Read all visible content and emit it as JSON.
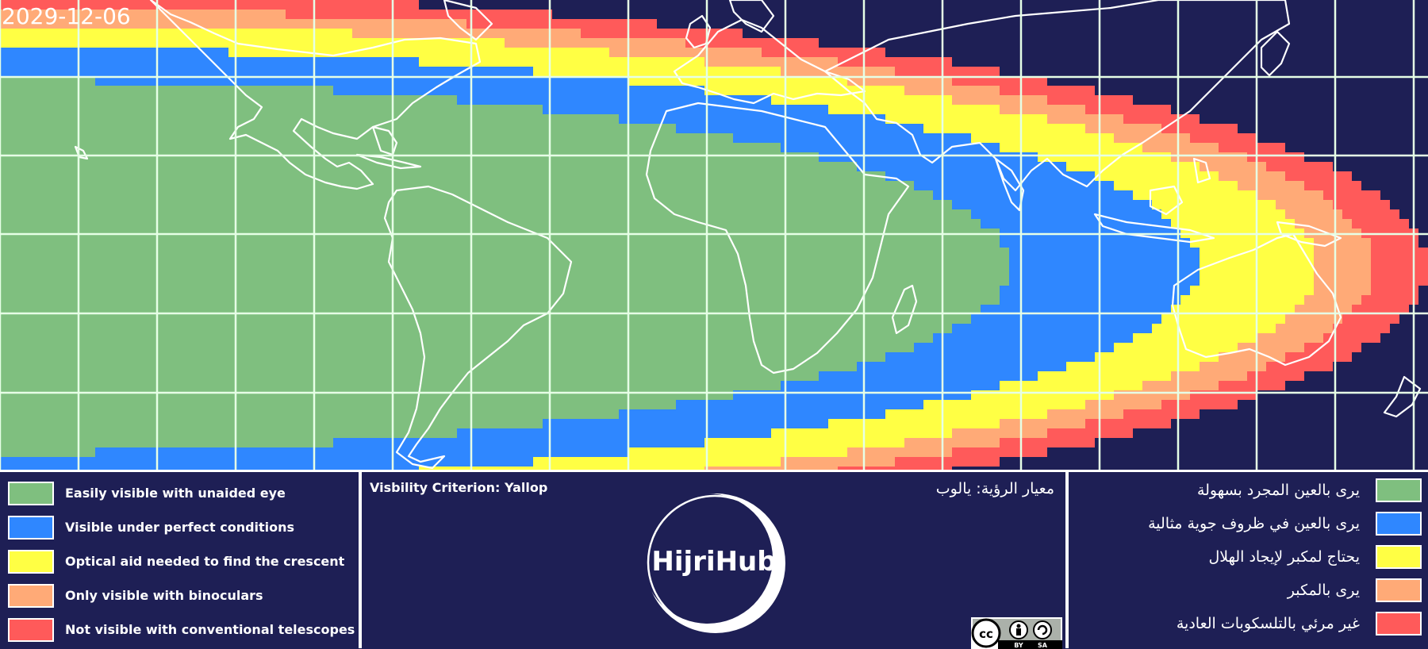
{
  "date": "2029-12-06",
  "map": {
    "zones": [
      {
        "label": "Easily visible with unaided eye",
        "color": "#7fbf7f"
      },
      {
        "label": "Visible under perfect conditions",
        "color": "#2f87ff"
      },
      {
        "label": "Optical aid needed to find the crescent",
        "color": "#ffff44"
      },
      {
        "label": "Only visible with binoculars",
        "color": "#ffaa77"
      },
      {
        "label": "Not visible with conventional telescopes",
        "color": "#ff5a5a"
      }
    ],
    "background_color": "#1e1f55",
    "grid_color": "#e6ffe6"
  },
  "legend_left": {
    "items": [
      {
        "label": "Easily visible with unaided eye",
        "color": "#7fbf7f"
      },
      {
        "label": "Visible under perfect conditions",
        "color": "#2f87ff"
      },
      {
        "label": "Optical aid needed to find the crescent",
        "color": "#ffff44"
      },
      {
        "label": "Only visible with binoculars",
        "color": "#ffaa77"
      },
      {
        "label": "Not visible with conventional telescopes",
        "color": "#ff5a5a"
      }
    ]
  },
  "legend_right": {
    "items": [
      {
        "label": "يرى بالعين المجرد بسهولة",
        "color": "#7fbf7f"
      },
      {
        "label": "يرى بالعين في ظروف جوية مثالية",
        "color": "#2f87ff"
      },
      {
        "label": "يحتاج لمكبر لإيجاد الهلال",
        "color": "#ffff44"
      },
      {
        "label": "يرى بالمكبر",
        "color": "#ffaa77"
      },
      {
        "label": "غير مرئي بالتلسكوبات العادية",
        "color": "#ff5a5a"
      }
    ]
  },
  "center": {
    "criterion_en": "Visbility Criterion: Yallop",
    "criterion_ar": "معيار الرؤية: يالوب",
    "logo_text": "HijriHub",
    "license": {
      "cc": "cc",
      "by": "BY",
      "sa": "SA"
    }
  }
}
